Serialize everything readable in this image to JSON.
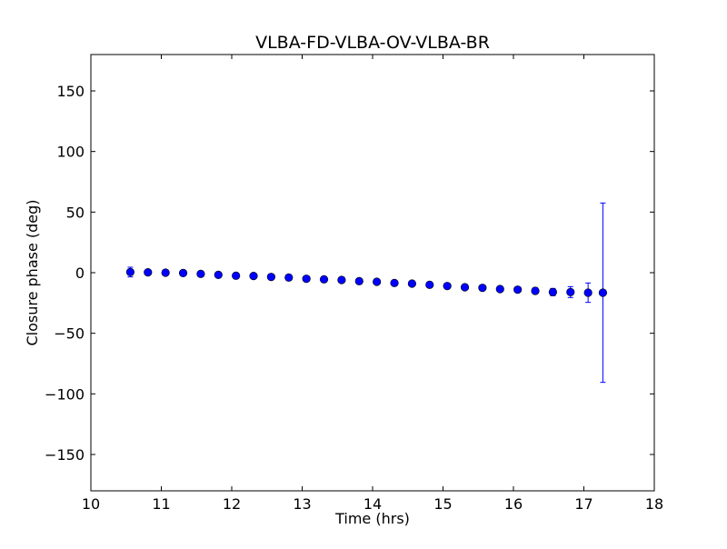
{
  "chart_data": {
    "type": "scatter",
    "title": "VLBA-FD-VLBA-OV-VLBA-BR",
    "xlabel": "Time (hrs)",
    "ylabel": "Closure phase (deg)",
    "xlim": [
      10,
      18
    ],
    "ylim": [
      -180,
      180
    ],
    "xticks": [
      10,
      11,
      12,
      13,
      14,
      15,
      16,
      17,
      18
    ],
    "xtick_labels": [
      "10",
      "11",
      "12",
      "13",
      "14",
      "15",
      "16",
      "17",
      "18"
    ],
    "yticks": [
      -150,
      -100,
      -50,
      0,
      50,
      100,
      150
    ],
    "ytick_labels": [
      "−150",
      "−100",
      "−50",
      "0",
      "50",
      "100",
      "150"
    ],
    "grid": false,
    "marker_color": "#0000ff",
    "errorbar_color": "#0000ff",
    "series": [
      {
        "x": [
          10.56,
          10.81,
          11.06,
          11.31,
          11.56,
          11.81,
          12.06,
          12.31,
          12.56,
          12.81,
          13.06,
          13.31,
          13.56,
          13.81,
          14.06,
          14.31,
          14.56,
          14.81,
          15.06,
          15.31,
          15.56,
          15.81,
          16.06,
          16.31,
          16.56,
          16.81,
          17.06,
          17.27
        ],
        "y": [
          0.5,
          0.3,
          0.0,
          -0.3,
          -1.0,
          -1.8,
          -2.5,
          -2.7,
          -3.5,
          -4.0,
          -5.0,
          -5.5,
          -6.0,
          -7.0,
          -7.5,
          -8.5,
          -9.0,
          -10.0,
          -11.0,
          -12.0,
          -12.5,
          -13.5,
          -14.0,
          -15.0,
          -16.0,
          -16.0,
          -16.5,
          -16.5
        ],
        "yerr_low": [
          4,
          2,
          1.5,
          1.5,
          1.5,
          1.5,
          1.5,
          1.5,
          1.5,
          1.5,
          1.5,
          1.5,
          1.5,
          1.5,
          1.5,
          1.5,
          1.5,
          1.5,
          1.5,
          1.5,
          1.5,
          1.5,
          2,
          2.5,
          3,
          4.5,
          8,
          74
        ],
        "yerr_high": [
          4,
          2,
          1.5,
          1.5,
          1.5,
          1.5,
          1.5,
          1.5,
          1.5,
          1.5,
          1.5,
          1.5,
          1.5,
          1.5,
          1.5,
          1.5,
          1.5,
          1.5,
          1.5,
          1.5,
          1.5,
          1.5,
          2,
          2.5,
          3,
          4.5,
          8,
          74
        ]
      }
    ]
  }
}
